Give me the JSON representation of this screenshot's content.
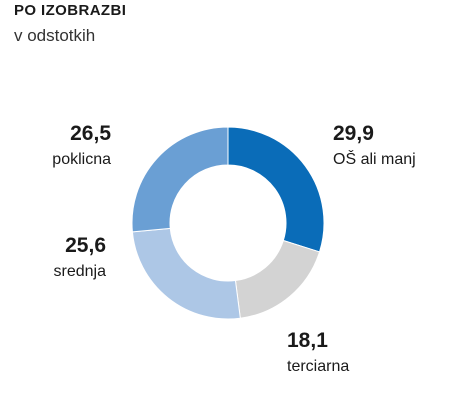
{
  "title": "PO IZOBRAZBI",
  "subtitle": "v odstotkih",
  "chart_data": {
    "type": "pie",
    "variant": "donut",
    "title": "PO IZOBRAZBI",
    "subtitle": "v odstotkih",
    "slices": [
      {
        "label": "OŠ ali manj",
        "value_label": "29,9",
        "value": 29.9,
        "color": "#0a6cb8"
      },
      {
        "label": "terciarna",
        "value_label": "18,1",
        "value": 18.1,
        "color": "#d3d3d3"
      },
      {
        "label": "srednja",
        "value_label": "25,6",
        "value": 25.6,
        "color": "#adc7e6"
      },
      {
        "label": "poklicna",
        "value_label": "26,5",
        "value": 26.5,
        "color": "#6a9fd4"
      }
    ]
  }
}
